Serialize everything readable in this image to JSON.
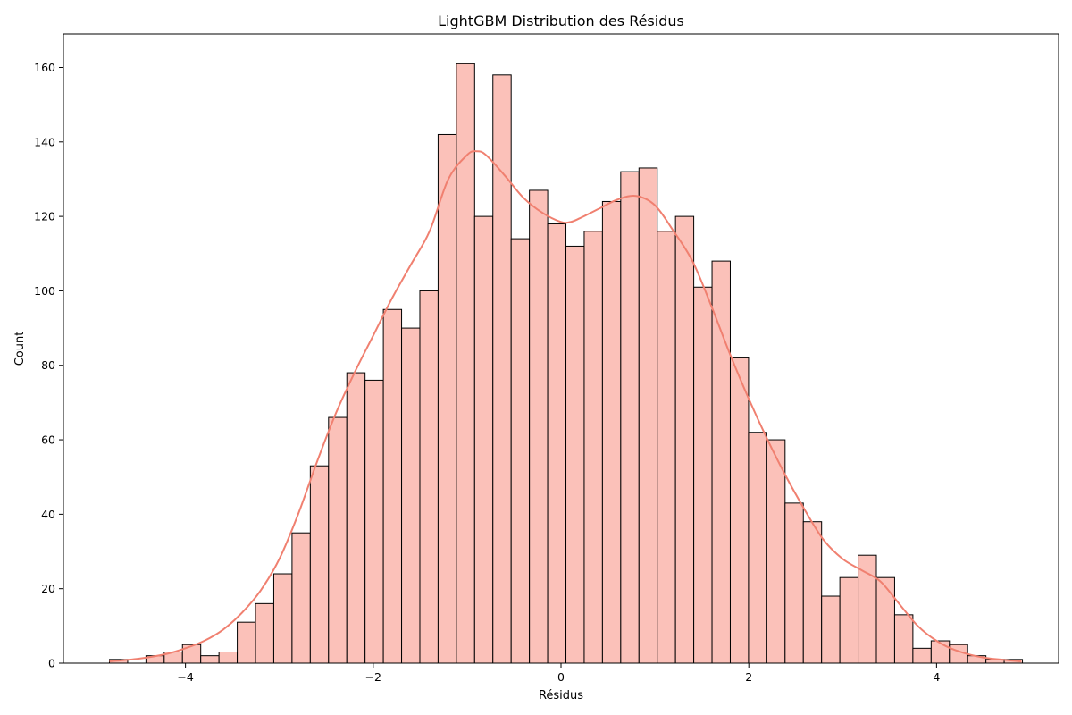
{
  "chart_data": {
    "type": "bar",
    "title": "LightGBM Distribution des Résidus",
    "xlabel": "Résidus",
    "ylabel": "Count",
    "xlim": [
      -5.3,
      5.3
    ],
    "ylim": [
      0,
      169
    ],
    "x_ticks": [
      -4,
      -2,
      0,
      2,
      4
    ],
    "x_tick_labels": [
      "−4",
      "−2",
      "0",
      "2",
      "4"
    ],
    "y_ticks": [
      0,
      20,
      40,
      60,
      80,
      100,
      120,
      140,
      160
    ],
    "bins": {
      "start": -4.81,
      "width": 0.1945,
      "counts": [
        1,
        0,
        2,
        3,
        5,
        2,
        3,
        11,
        16,
        24,
        35,
        53,
        66,
        78,
        76,
        95,
        90,
        100,
        142,
        161,
        120,
        158,
        114,
        127,
        118,
        112,
        116,
        124,
        132,
        133,
        116,
        120,
        101,
        108,
        82,
        62,
        60,
        43,
        38,
        18,
        23,
        29,
        23,
        13,
        4,
        6,
        5,
        2,
        1,
        1
      ]
    },
    "kde_curve": {
      "x": [
        -4.81,
        -4.5,
        -4.2,
        -4.0,
        -3.8,
        -3.6,
        -3.4,
        -3.2,
        -3.0,
        -2.8,
        -2.6,
        -2.4,
        -2.2,
        -2.0,
        -1.8,
        -1.6,
        -1.4,
        -1.2,
        -1.0,
        -0.9,
        -0.8,
        -0.6,
        -0.4,
        -0.2,
        0.0,
        0.1,
        0.2,
        0.4,
        0.6,
        0.8,
        1.0,
        1.2,
        1.4,
        1.6,
        1.8,
        2.0,
        2.2,
        2.4,
        2.6,
        2.8,
        3.0,
        3.2,
        3.4,
        3.6,
        3.8,
        4.0,
        4.2,
        4.5,
        4.9
      ],
      "y": [
        0.5,
        1.2,
        2.5,
        4,
        6,
        9,
        13.5,
        19.5,
        28,
        40,
        54,
        67,
        78,
        88,
        98,
        107,
        116,
        130,
        136.5,
        137.5,
        136.5,
        131,
        125,
        121,
        118.5,
        118.5,
        119.5,
        122,
        124.5,
        125.5,
        123,
        116,
        108,
        96,
        83,
        71,
        60,
        50,
        41,
        33,
        28,
        25,
        22,
        16,
        10,
        6,
        3.5,
        1.5,
        0.5
      ],
      "color": "#f08070"
    },
    "bar_fill": "#fbc1b9",
    "bar_edge": "#000000",
    "grid": false,
    "legend": "none"
  }
}
